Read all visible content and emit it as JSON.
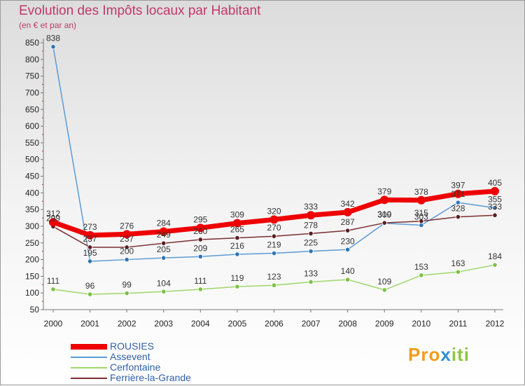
{
  "chart_data": {
    "type": "line",
    "title": "Evolution des Impôts locaux par Habitant",
    "subtitle": "(en € et par an)",
    "categories": [
      "2000",
      "2001",
      "2002",
      "2003",
      "2004",
      "2005",
      "2006",
      "2007",
      "2008",
      "2009",
      "2010",
      "2011",
      "2012"
    ],
    "ylim": [
      50,
      850
    ],
    "yticks": [
      50,
      100,
      150,
      200,
      250,
      300,
      350,
      400,
      450,
      500,
      550,
      600,
      650,
      700,
      750,
      800,
      850
    ],
    "grid": false,
    "legend_position": "bottom-left",
    "series": [
      {
        "name": "Assevent",
        "color": "#5b9bd5",
        "point_color": "#2f75b5",
        "values": [
          838,
          195,
          200,
          205,
          209,
          216,
          219,
          225,
          230,
          309,
          303,
          371,
          355
        ]
      },
      {
        "name": "Cerfontaine",
        "color": "#9fd66a",
        "point_color": "#7cc242",
        "values": [
          111,
          96,
          99,
          104,
          111,
          119,
          123,
          133,
          140,
          109,
          153,
          163,
          184
        ]
      },
      {
        "name": "Ferrière-la-Grande",
        "color": "#7a2e32",
        "point_color": "#5a1e22",
        "values": [
          299,
          237,
          237,
          249,
          260,
          265,
          270,
          278,
          287,
          310,
          315,
          328,
          333
        ]
      },
      {
        "name": "ROUSIES",
        "color": "#ee0000",
        "point_color": "#ee0000",
        "values": [
          312,
          273,
          276,
          284,
          295,
          309,
          320,
          333,
          342,
          379,
          378,
          397,
          405
        ]
      }
    ],
    "legend_order": [
      "ROUSIES",
      "Assevent",
      "Cerfontaine",
      "Ferrière-la-Grande"
    ]
  },
  "logo": {
    "part1": "Pro",
    "part2": "x",
    "part3": "iti"
  }
}
